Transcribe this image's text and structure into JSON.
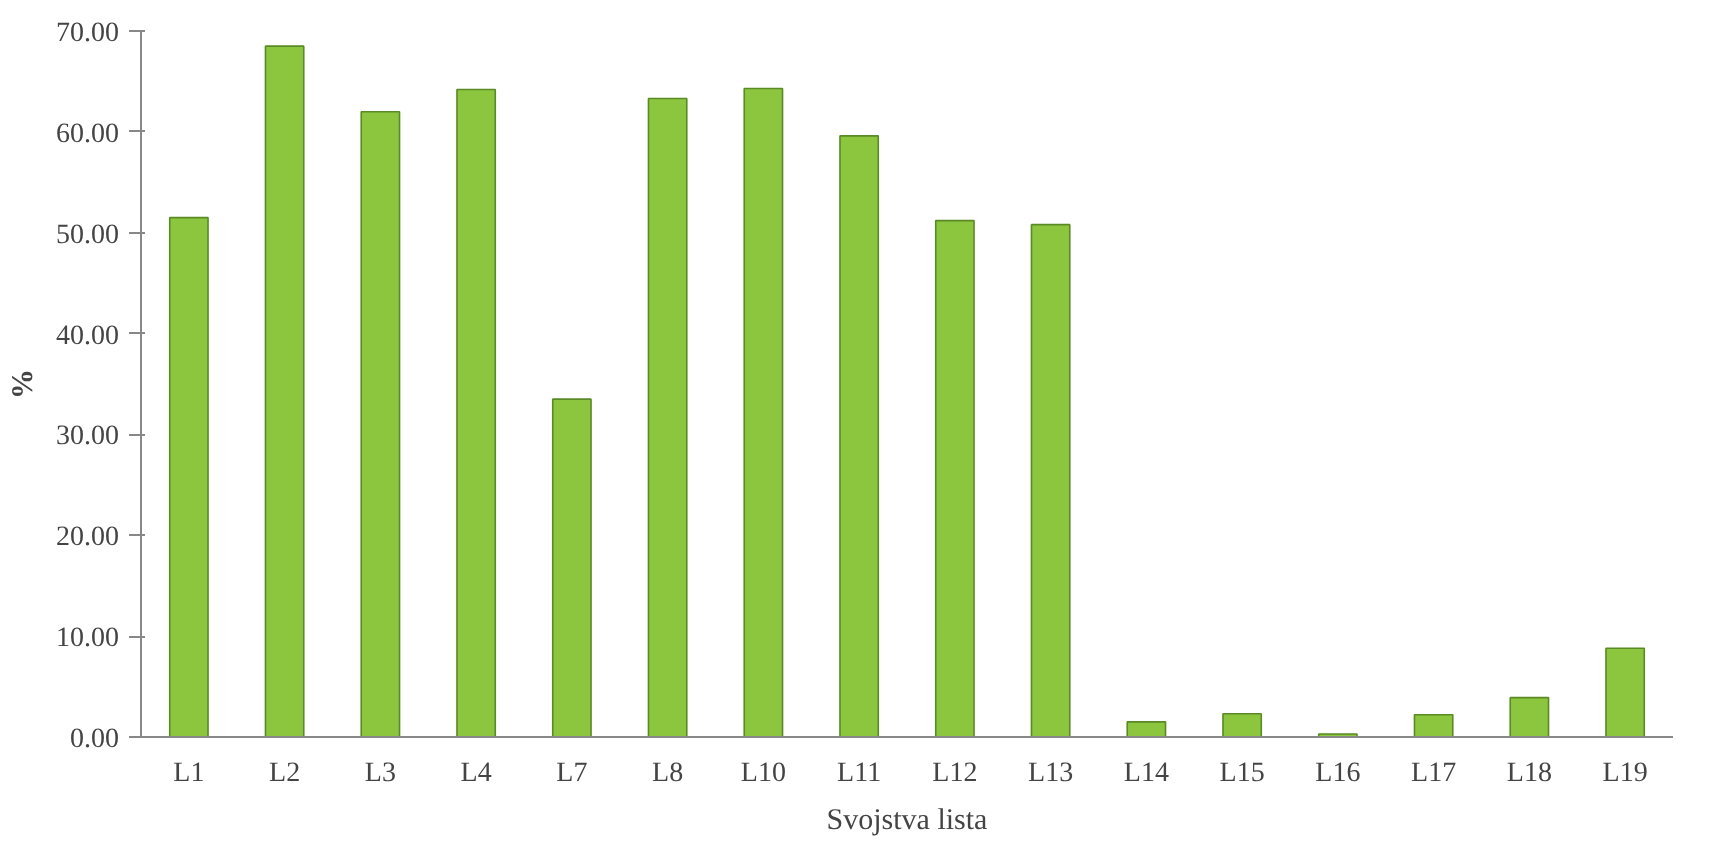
{
  "chart_data": {
    "type": "bar",
    "xlabel": "Svojstva lista",
    "ylabel": "%",
    "categories": [
      "L1",
      "L2",
      "L3",
      "L4",
      "L7",
      "L8",
      "L10",
      "L11",
      "L12",
      "L13",
      "L14",
      "L15",
      "L16",
      "L17",
      "L18",
      "L19"
    ],
    "values": [
      51.5,
      68.5,
      62,
      64.2,
      33.5,
      63.3,
      64.3,
      59.6,
      51.2,
      50.8,
      1.5,
      2.3,
      0.3,
      2.2,
      3.9,
      8.8
    ],
    "color": "#8cc63f",
    "ylim": [
      0,
      70
    ],
    "yticks": [
      {
        "value": 0,
        "label": "0.00"
      },
      {
        "value": 10,
        "label": "10.00"
      },
      {
        "value": 20,
        "label": "20.00"
      },
      {
        "value": 30,
        "label": "30.00"
      },
      {
        "value": 40,
        "label": "40.00"
      },
      {
        "value": 50,
        "label": "50.00"
      },
      {
        "value": 60,
        "label": "60.00"
      },
      {
        "value": 70,
        "label": "70.00"
      }
    ],
    "grid": false
  }
}
